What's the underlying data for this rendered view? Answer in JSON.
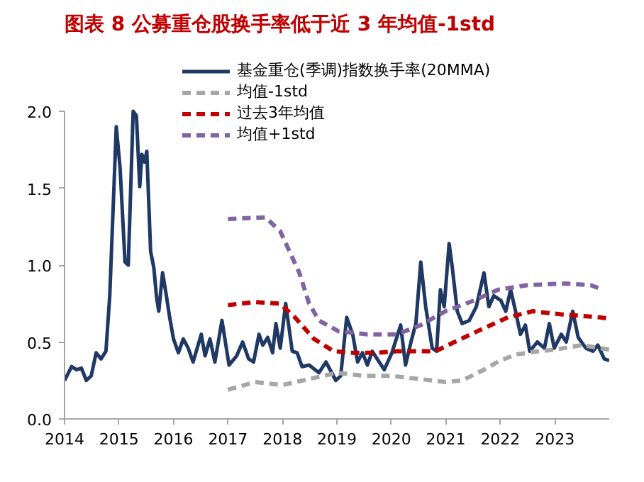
{
  "chart_data": {
    "type": "line",
    "title": "图表 8   公募重仓股换手率低于近 3 年均值-1std",
    "xlim": [
      2014,
      2024
    ],
    "xticks": [
      2014,
      2015,
      2016,
      2017,
      2018,
      2019,
      2020,
      2021,
      2022,
      2023
    ],
    "ylim": [
      0,
      2.0
    ],
    "yticks": [
      {
        "value": 0,
        "label": "0.0"
      },
      {
        "value": 0.5,
        "label": "0.5"
      },
      {
        "value": 1,
        "label": "1.0"
      },
      {
        "value": 1.5,
        "label": "1.5"
      },
      {
        "value": 2,
        "label": "2.0"
      }
    ],
    "grid": false,
    "legend": "top",
    "marker": "none",
    "series": [
      {
        "name": "基金重仓(季调)指数换手率(20MMA)",
        "color": "#1f3864",
        "line_style": "solid",
        "x": [
          2014.0,
          2014.13,
          2014.22,
          2014.31,
          2014.4,
          2014.49,
          2014.58,
          2014.67,
          2014.76,
          2014.83,
          2014.95,
          2015.02,
          2015.11,
          2015.17,
          2015.26,
          2015.32,
          2015.38,
          2015.42,
          2015.47,
          2015.51,
          2015.58,
          2015.64,
          2015.69,
          2015.73,
          2015.8,
          2015.87,
          2015.93,
          2016.0,
          2016.09,
          2016.18,
          2016.27,
          2016.36,
          2016.51,
          2016.58,
          2016.67,
          2016.76,
          2016.89,
          2017.02,
          2017.16,
          2017.27,
          2017.38,
          2017.47,
          2017.57,
          2017.64,
          2017.73,
          2017.82,
          2017.88,
          2017.96,
          2018.06,
          2018.18,
          2018.27,
          2018.36,
          2018.49,
          2018.67,
          2018.8,
          2018.98,
          2019.07,
          2019.18,
          2019.29,
          2019.38,
          2019.47,
          2019.56,
          2019.65,
          2019.74,
          2019.87,
          2020.01,
          2020.17,
          2020.26,
          2020.36,
          2020.45,
          2020.54,
          2020.63,
          2020.75,
          2020.83,
          2020.9,
          2020.97,
          2021.06,
          2021.12,
          2021.21,
          2021.3,
          2021.43,
          2021.56,
          2021.7,
          2021.79,
          2021.88,
          2022.01,
          2022.1,
          2022.19,
          2022.28,
          2022.37,
          2022.46,
          2022.54,
          2022.68,
          2022.81,
          2022.9,
          2022.99,
          2023.12,
          2023.21,
          2023.33,
          2023.43,
          2023.57,
          2023.7,
          2023.79,
          2023.91,
          2024.0
        ],
        "values": [
          0.25,
          0.34,
          0.32,
          0.33,
          0.25,
          0.28,
          0.43,
          0.39,
          0.44,
          0.8,
          1.9,
          1.63,
          1.02,
          1.0,
          2.0,
          1.97,
          1.51,
          1.72,
          1.67,
          1.74,
          1.09,
          0.98,
          0.79,
          0.7,
          0.95,
          0.8,
          0.66,
          0.52,
          0.43,
          0.52,
          0.46,
          0.37,
          0.55,
          0.41,
          0.52,
          0.37,
          0.64,
          0.35,
          0.41,
          0.5,
          0.39,
          0.37,
          0.55,
          0.48,
          0.53,
          0.43,
          0.62,
          0.46,
          0.75,
          0.44,
          0.43,
          0.34,
          0.35,
          0.3,
          0.37,
          0.25,
          0.28,
          0.66,
          0.55,
          0.37,
          0.43,
          0.35,
          0.44,
          0.39,
          0.32,
          0.43,
          0.61,
          0.35,
          0.5,
          0.62,
          1.02,
          0.73,
          0.46,
          0.44,
          0.84,
          0.73,
          1.14,
          0.98,
          0.7,
          0.62,
          0.64,
          0.73,
          0.95,
          0.73,
          0.8,
          0.77,
          0.7,
          0.84,
          0.7,
          0.55,
          0.61,
          0.44,
          0.5,
          0.46,
          0.62,
          0.46,
          0.55,
          0.5,
          0.7,
          0.53,
          0.46,
          0.44,
          0.48,
          0.39,
          0.38
        ]
      },
      {
        "name": "均值-1std",
        "color": "#a6a6a6",
        "line_style": "dashed",
        "x": [
          2017.0,
          2017.5,
          2018.0,
          2018.5,
          2019.0,
          2019.5,
          2020.0,
          2020.5,
          2021.0,
          2021.3,
          2021.7,
          2022.0,
          2022.3,
          2022.7,
          2023.0,
          2023.5,
          2024.0
        ],
        "values": [
          0.19,
          0.24,
          0.22,
          0.26,
          0.3,
          0.28,
          0.28,
          0.26,
          0.24,
          0.25,
          0.32,
          0.38,
          0.42,
          0.44,
          0.45,
          0.48,
          0.45
        ]
      },
      {
        "name": "过去3年均值",
        "color": "#c00000",
        "line_style": "dashed",
        "x": [
          2017.0,
          2017.5,
          2017.95,
          2018.23,
          2018.58,
          2018.94,
          2019.29,
          2019.74,
          2020.1,
          2020.45,
          2020.81,
          2021.16,
          2021.7,
          2022.14,
          2022.59,
          2023.12,
          2023.84,
          2024.0
        ],
        "values": [
          0.74,
          0.76,
          0.75,
          0.66,
          0.52,
          0.44,
          0.43,
          0.43,
          0.44,
          0.44,
          0.44,
          0.5,
          0.59,
          0.66,
          0.7,
          0.68,
          0.66,
          0.65
        ]
      },
      {
        "name": "均值+1std",
        "color": "#8064a2",
        "line_style": "dashed",
        "x": [
          2017.0,
          2017.69,
          2017.96,
          2018.31,
          2018.49,
          2018.67,
          2019.03,
          2019.56,
          2020.1,
          2020.54,
          2020.99,
          2021.52,
          2021.96,
          2022.5,
          2023.21,
          2023.66,
          2023.88
        ],
        "values": [
          1.3,
          1.31,
          1.22,
          0.95,
          0.75,
          0.64,
          0.57,
          0.55,
          0.55,
          0.61,
          0.7,
          0.77,
          0.84,
          0.87,
          0.88,
          0.87,
          0.84
        ]
      }
    ]
  }
}
